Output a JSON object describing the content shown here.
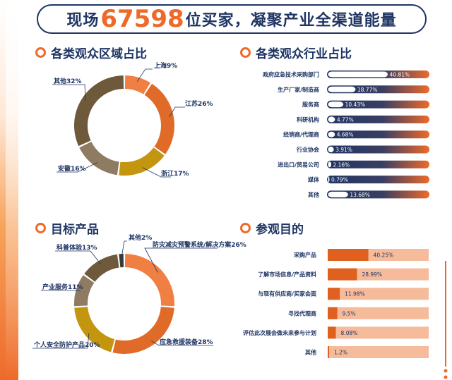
{
  "title": {
    "prefix": "现场",
    "number": "67598",
    "suffix": "位买家，凝聚产业全渠道能量"
  },
  "sections": {
    "region": "各类观众区域占比",
    "industry": "各类观众行业占比",
    "product": "目标产品",
    "purpose": "参观目的"
  },
  "colors": {
    "orange": "#ee6a2a",
    "navy": "#1f3564",
    "peach": "#f5bb9a"
  },
  "chart_data": [
    {
      "type": "pie",
      "title": "各类观众区域占比",
      "labels": [
        "上海9%",
        "江苏26%",
        "浙江17%",
        "安徽16%",
        "其他32%"
      ],
      "values": [
        9,
        26,
        17,
        16,
        32
      ],
      "colors": [
        "#ef7f42",
        "#e06a27",
        "#c4960f",
        "#8f7a62",
        "#6e5a3a"
      ]
    },
    {
      "type": "bar",
      "title": "各类观众行业占比",
      "categories": [
        "政府应急技术采购部门",
        "生产厂家/制造商",
        "服务商",
        "科研机构",
        "经销商/代理商",
        "行业协会",
        "进出口/贸易公司",
        "媒体",
        "其他"
      ],
      "values": [
        40.81,
        18.77,
        10.43,
        4.77,
        4.68,
        3.91,
        2.16,
        0.79,
        13.68
      ],
      "value_labels": [
        "40.81%",
        "18.77%",
        "10.43%",
        "4.77%",
        "4.68%",
        "3.91%",
        "2.16%",
        "0.79%",
        "13.68%"
      ],
      "xlim": [
        0,
        70
      ]
    },
    {
      "type": "pie",
      "title": "目标产品",
      "labels": [
        "防灾减灾预警系统/解决方案26%",
        "应急救援装备28%",
        "个人安全防护产品20%",
        "产业服务11%",
        "科普体验13%",
        "其他2%"
      ],
      "values": [
        26,
        28,
        20,
        11,
        13,
        2
      ],
      "colors": [
        "#ef7f42",
        "#e06a27",
        "#c4960f",
        "#8f7a62",
        "#6e5a3a",
        "#3a3a3a"
      ]
    },
    {
      "type": "bar",
      "title": "参观目的",
      "categories": [
        "采购产品",
        "了解市场信息/产品资料",
        "与现有供应商/买家会面",
        "寻找代理商",
        "评估此次展会做未来参与计划",
        "其他"
      ],
      "values": [
        40.25,
        28.99,
        11.98,
        9.5,
        8.08,
        1.2
      ],
      "value_labels": [
        "40.25%",
        "28.99%",
        "11.98%",
        "9.5%",
        "8.08%",
        "1.2%"
      ],
      "xlim": [
        0,
        100
      ]
    }
  ]
}
